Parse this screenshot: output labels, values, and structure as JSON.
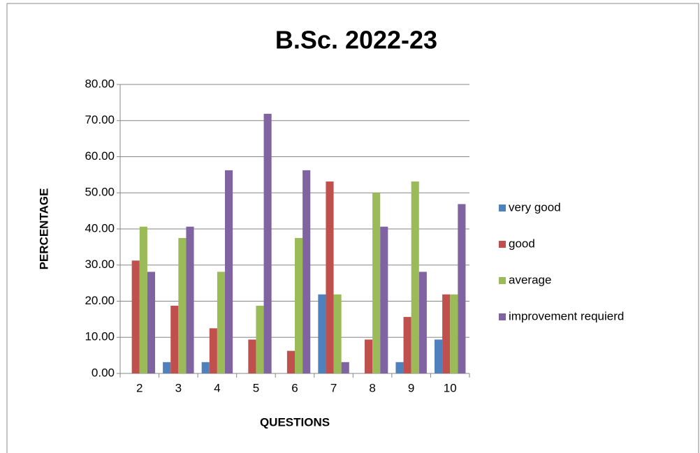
{
  "chart_data": {
    "type": "bar",
    "title": "B.Sc. 2022-23",
    "x_label": "QUESTIONS",
    "y_label": "PERCENTAGE",
    "categories": [
      "2",
      "3",
      "4",
      "5",
      "6",
      "7",
      "8",
      "9",
      "10"
    ],
    "series": [
      {
        "name": "very good",
        "color": "#4f81bd",
        "values": [
          0,
          3.13,
          3.13,
          0,
          0,
          21.88,
          0,
          3.13,
          9.38
        ]
      },
      {
        "name": "good",
        "color": "#c0504d",
        "values": [
          31.25,
          18.75,
          12.5,
          9.38,
          6.25,
          53.13,
          9.38,
          15.63,
          21.88
        ]
      },
      {
        "name": "average",
        "color": "#9bbb59",
        "values": [
          40.63,
          37.5,
          28.13,
          18.75,
          37.5,
          21.88,
          50,
          53.13,
          21.88
        ]
      },
      {
        "name": "improvement requierd",
        "color": "#8064a2",
        "values": [
          28.13,
          40.63,
          56.25,
          71.88,
          56.25,
          3.13,
          40.63,
          28.13,
          46.88
        ]
      }
    ],
    "ylim": [
      0,
      80
    ],
    "yticks": [
      {
        "value": 0,
        "label": "0.00"
      },
      {
        "value": 10,
        "label": "10.00"
      },
      {
        "value": 20,
        "label": "20.00"
      },
      {
        "value": 30,
        "label": "30.00"
      },
      {
        "value": 40,
        "label": "40.00"
      },
      {
        "value": 50,
        "label": "50.00"
      },
      {
        "value": 60,
        "label": "60.00"
      },
      {
        "value": 70,
        "label": "70.00"
      },
      {
        "value": 80,
        "label": "80.00"
      }
    ],
    "grid": true,
    "legend": "right"
  }
}
